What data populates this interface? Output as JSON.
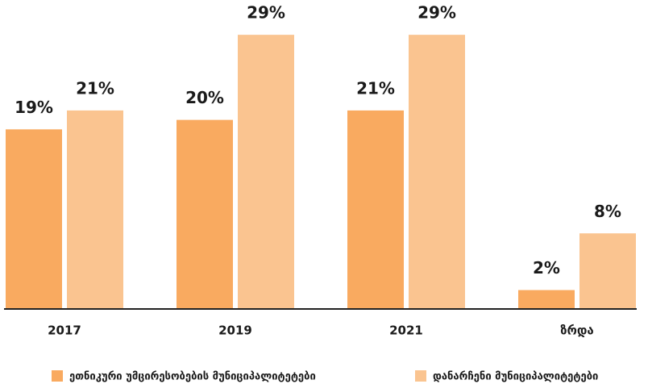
{
  "chart_data": {
    "type": "bar",
    "categories": [
      "2017",
      "2019",
      "2021",
      "ზრდა"
    ],
    "series": [
      {
        "name": "ეთნიკური უმცირესობების მუნიციპალიტეტები",
        "color": "#f9aa60",
        "values": [
          19,
          20,
          21,
          2
        ],
        "value_labels": [
          "19%",
          "20%",
          "21%",
          "2%"
        ]
      },
      {
        "name": "დანარჩენი მუნიციპალიტეტები",
        "color": "#fac490",
        "values": [
          21,
          29,
          29,
          8
        ],
        "value_labels": [
          "21%",
          "29%",
          "29%",
          "8%"
        ]
      }
    ],
    "ylim": [
      0,
      32
    ]
  }
}
